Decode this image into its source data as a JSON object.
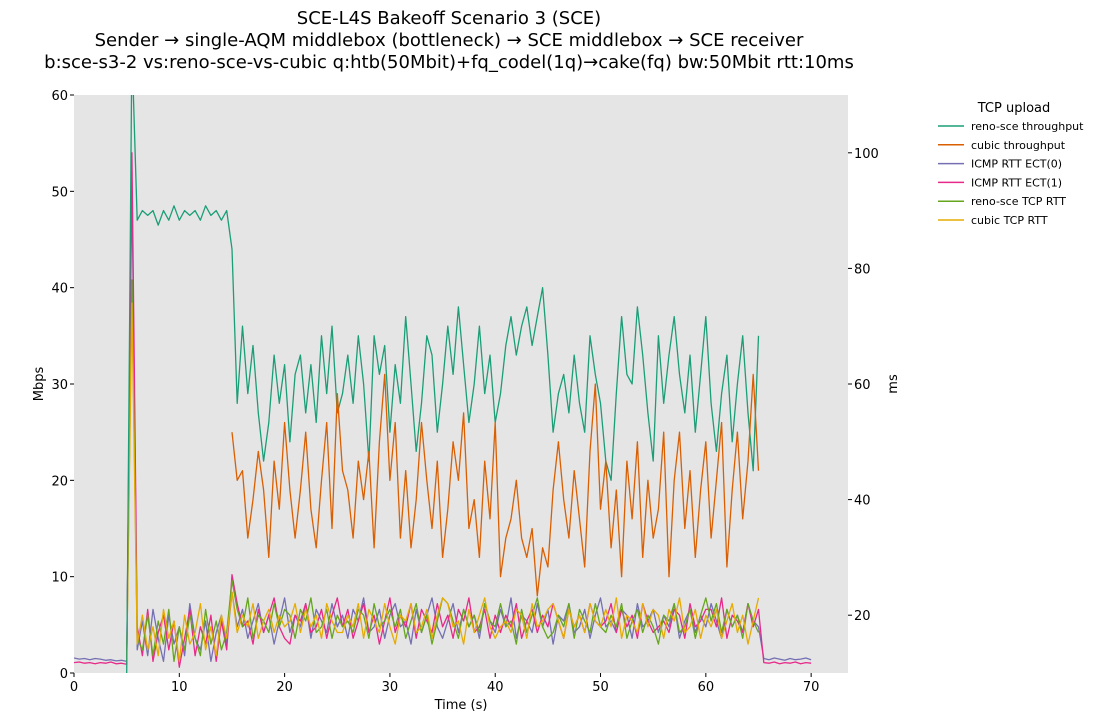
{
  "chart_data": {
    "type": "line",
    "title_lines": [
      "SCE-L4S Bakeoff Scenario 3 (SCE)",
      "Sender → single-AQM middlebox (bottleneck) → SCE middlebox → SCE receiver",
      "b:sce-s3-2 vs:reno-sce-vs-cubic q:htb(50Mbit)+fq_codel(1q)→cake(fq) bw:50Mbit rtt:10ms"
    ],
    "xlabel": "Time (s)",
    "ylabel_left": "Mbps",
    "ylabel_right": "ms",
    "xlim": [
      0,
      73.5
    ],
    "ylim_left": [
      0,
      60
    ],
    "ylim_right": [
      10,
      110
    ],
    "x_ticks": [
      "0",
      "10",
      "20",
      "30",
      "40",
      "50",
      "60",
      "70"
    ],
    "left_ticks": [
      "0",
      "10",
      "20",
      "30",
      "40",
      "50",
      "60"
    ],
    "right_ticks": [
      "20",
      "40",
      "60",
      "80",
      "100"
    ],
    "grid": false,
    "legend": {
      "title": "TCP upload",
      "placement": "outside-top-right"
    },
    "series": [
      {
        "name": "reno-sce throughput",
        "axis": "left",
        "color": "#1b9e77",
        "x0": 5.0,
        "dx": 0.5,
        "values": [
          0,
          65,
          47,
          48,
          47.5,
          48,
          46.5,
          48,
          47,
          48.5,
          47,
          48,
          47.5,
          48,
          47,
          48.5,
          47.5,
          48,
          47,
          48,
          44,
          28,
          36,
          29,
          34,
          27,
          22,
          26,
          33,
          28,
          32,
          24,
          31,
          33,
          27,
          32,
          26,
          35,
          29,
          36,
          27,
          29,
          33,
          28,
          35,
          30,
          22,
          35,
          31,
          34,
          25,
          32,
          28,
          37,
          30,
          23,
          28,
          35,
          33,
          25,
          30,
          36,
          31,
          38,
          32,
          26,
          30,
          36,
          29,
          33,
          26,
          29,
          34,
          37,
          33,
          36,
          38,
          34,
          37,
          40,
          33,
          25,
          29,
          31,
          27,
          33,
          28,
          25,
          35,
          31,
          28,
          22,
          20,
          29,
          37,
          31,
          30,
          38,
          33,
          27,
          22,
          35,
          28,
          33,
          37,
          31,
          27,
          33,
          25,
          31,
          37,
          28,
          23,
          29,
          33,
          24,
          30,
          35,
          27,
          21,
          35
        ]
      },
      {
        "name": "cubic throughput",
        "axis": "left",
        "color": "#d95f02",
        "x0": 15.0,
        "dx": 0.5,
        "values": [
          25,
          20,
          21,
          14,
          18,
          23,
          19,
          12,
          22,
          17,
          26,
          19,
          14,
          19,
          25,
          17,
          13,
          20,
          26,
          15,
          29,
          21,
          19,
          14,
          22,
          18,
          23,
          13,
          24,
          31,
          20,
          26,
          14,
          21,
          13,
          18,
          26,
          20,
          15,
          22,
          12,
          17,
          24,
          20,
          27,
          15,
          18,
          12,
          22,
          16,
          26,
          10,
          14,
          16,
          20,
          14,
          12,
          15,
          8,
          13,
          11,
          19,
          24,
          18,
          14,
          21,
          16,
          11,
          23,
          30,
          17,
          22,
          13,
          19,
          10,
          22,
          16,
          24,
          12,
          20,
          14,
          17,
          25,
          10,
          20,
          25,
          15,
          21,
          12,
          19,
          24,
          14,
          20,
          26,
          11,
          19,
          25,
          16,
          22,
          31,
          21
        ]
      },
      {
        "name": "ICMP RTT ECT(0)",
        "axis": "right",
        "color": "#7570b3",
        "x0": 0.0,
        "dx": 0.5,
        "values": [
          12.6,
          12.4,
          12.5,
          12.3,
          12.5,
          12.4,
          12.2,
          12.3,
          12.1,
          12.2,
          12,
          95,
          14,
          19,
          13,
          21,
          16,
          12,
          20,
          15,
          18,
          13,
          22,
          16,
          14,
          19,
          12,
          17,
          20,
          15,
          24,
          18,
          21,
          16,
          19,
          22,
          17,
          20,
          15,
          19,
          23,
          17,
          20,
          18,
          22,
          16,
          21,
          19,
          17,
          22,
          18,
          20,
          16,
          21,
          19,
          23,
          17,
          18,
          21,
          16,
          20,
          22,
          18,
          19,
          15,
          21,
          17,
          20,
          23,
          18,
          16,
          19,
          22,
          17,
          21,
          18,
          20,
          16,
          22,
          19,
          17,
          21,
          18,
          23,
          16,
          20,
          19,
          17,
          22,
          18,
          21,
          15,
          20,
          19,
          22,
          17,
          18,
          21,
          16,
          20,
          23,
          18,
          19,
          17,
          21,
          20,
          16,
          22,
          18,
          19,
          21,
          17,
          20,
          18,
          22,
          16,
          19,
          21,
          17,
          20,
          18,
          22,
          19,
          16,
          21,
          18,
          20,
          17,
          22,
          19,
          18,
          12.5,
          12.3,
          12.6,
          12.4,
          12.2,
          12.5,
          12.3,
          12.4,
          12.6,
          12.3
        ]
      },
      {
        "name": "ICMP RTT ECT(1)",
        "axis": "right",
        "color": "#e7298a",
        "x0": 0.0,
        "dx": 0.5,
        "values": [
          11.8,
          11.9,
          11.7,
          11.8,
          11.6,
          11.8,
          11.7,
          11.9,
          11.6,
          11.7,
          11.5,
          100,
          18,
          13,
          21,
          12,
          17,
          20,
          14,
          19,
          11,
          16,
          21,
          13,
          18,
          15,
          20,
          12,
          19,
          14,
          27,
          22,
          18,
          19,
          15,
          21,
          17,
          20,
          23,
          18,
          16,
          15,
          20,
          19,
          22,
          17,
          18,
          21,
          16,
          20,
          23,
          18,
          21,
          16,
          19,
          22,
          17,
          20,
          15,
          19,
          23,
          17,
          20,
          18,
          22,
          16,
          21,
          19,
          17,
          22,
          18,
          20,
          16,
          21,
          19,
          23,
          17,
          18,
          21,
          16,
          20,
          17,
          20,
          18,
          22,
          16,
          19,
          21,
          17,
          20,
          18,
          22,
          19,
          16,
          21,
          18,
          20,
          17,
          22,
          19,
          18,
          19,
          22,
          17,
          21,
          18,
          20,
          16,
          22,
          19,
          17,
          18,
          19,
          17,
          21,
          20,
          16,
          22,
          18,
          19,
          21,
          21,
          18,
          23,
          16,
          20,
          19,
          17,
          22,
          18,
          21,
          11.8,
          11.7,
          11.9,
          11.6,
          11.8,
          11.7,
          11.9,
          11.6,
          11.8,
          11.7
        ]
      },
      {
        "name": "reno-sce TCP RTT",
        "axis": "right",
        "color": "#66a61e",
        "x0": 5.0,
        "dx": 0.5,
        "values": [
          12,
          78,
          16,
          14,
          20,
          13,
          19,
          15,
          21,
          12,
          18,
          14,
          20,
          16,
          13,
          21,
          15,
          19,
          14,
          17,
          26,
          21,
          18,
          23,
          16,
          20,
          19,
          17,
          22,
          18,
          21,
          20,
          16,
          21,
          19,
          23,
          17,
          18,
          21,
          16,
          20,
          18,
          19,
          17,
          21,
          20,
          16,
          22,
          18,
          19,
          21,
          18,
          21,
          16,
          19,
          22,
          17,
          20,
          15,
          19,
          23,
          22,
          19,
          16,
          21,
          18,
          20,
          17,
          22,
          19,
          18,
          22,
          18,
          19,
          15,
          21,
          17,
          20,
          23,
          18,
          16,
          17,
          20,
          18,
          22,
          16,
          21,
          19,
          17,
          22,
          18,
          17,
          20,
          18,
          22,
          16,
          19,
          21,
          17,
          20,
          18,
          15,
          20,
          19,
          22,
          17,
          18,
          21,
          16,
          20,
          23,
          19,
          22,
          17,
          21,
          18,
          20,
          16,
          22,
          19,
          17
        ]
      },
      {
        "name": "cubic TCP RTT",
        "axis": "right",
        "color": "#e6ab02",
        "x0": 5.0,
        "dx": 0.5,
        "values": [
          12,
          74,
          15,
          20,
          14,
          18,
          13,
          21,
          16,
          19,
          12,
          20,
          15,
          17,
          22,
          14,
          18,
          13,
          20,
          16,
          24,
          17,
          20,
          18,
          22,
          16,
          19,
          21,
          17,
          20,
          18,
          19,
          22,
          17,
          21,
          18,
          20,
          16,
          22,
          19,
          17,
          17,
          20,
          18,
          22,
          16,
          21,
          19,
          17,
          22,
          18,
          15,
          20,
          19,
          22,
          17,
          18,
          21,
          16,
          20,
          23,
          22,
          18,
          19,
          15,
          21,
          17,
          20,
          23,
          18,
          16,
          18,
          19,
          17,
          21,
          20,
          16,
          22,
          18,
          19,
          21,
          22,
          19,
          16,
          21,
          18,
          20,
          17,
          22,
          19,
          18,
          21,
          18,
          23,
          16,
          20,
          19,
          17,
          22,
          18,
          21,
          20,
          16,
          21,
          19,
          23,
          17,
          18,
          21,
          16,
          20,
          18,
          21,
          16,
          19,
          22,
          17,
          20,
          15,
          19,
          23
        ]
      }
    ]
  }
}
